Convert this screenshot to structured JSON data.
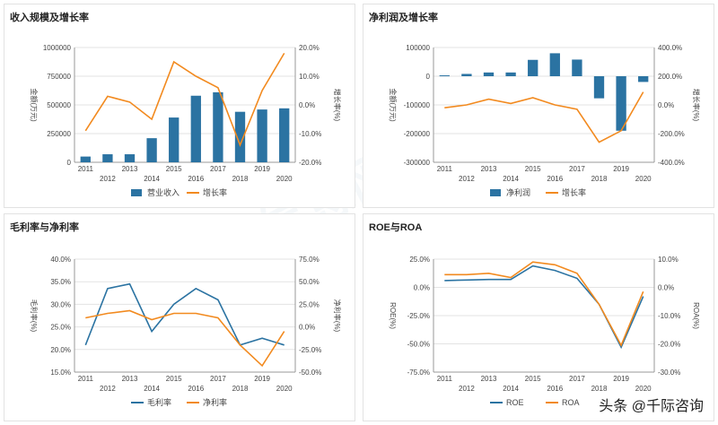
{
  "watermark_text": "资产信息网 千际投行",
  "brand_text": "头条 @千际咨询",
  "colors": {
    "bar": "#2b73a2",
    "line": "#f28a1f",
    "grid": "#e3e3e3",
    "axis": "#999999",
    "text": "#444444"
  },
  "chart_data": [
    {
      "id": "revenue",
      "type": "bar+line",
      "title": "收入规模及增长率",
      "categories": [
        "2011",
        "2012",
        "2013",
        "2014",
        "2015",
        "2016",
        "2017",
        "2018",
        "2019",
        "2020"
      ],
      "series": [
        {
          "name": "营业收入",
          "kind": "bar",
          "axis": "left",
          "values": [
            50000,
            70000,
            70000,
            210000,
            390000,
            580000,
            610000,
            440000,
            460000,
            470000
          ]
        },
        {
          "name": "增长率",
          "kind": "line",
          "axis": "right",
          "values": [
            -9.0,
            3.0,
            1.0,
            -5.0,
            15.0,
            10.0,
            6.0,
            -14.0,
            5.0,
            18.0
          ]
        }
      ],
      "ylabel": "金额(万元)",
      "y2label": "增长率(%)",
      "ylim": [
        0,
        1000000
      ],
      "yticks": [
        "0",
        "250000",
        "500000",
        "750000",
        "1000000"
      ],
      "y2lim": [
        -20,
        20
      ],
      "y2ticks": [
        "-20.0%",
        "-10.0%",
        "0.0%",
        "10.0%",
        "20.0%"
      ],
      "legend": [
        "营业收入",
        "增长率"
      ],
      "legend_position": "bottom"
    },
    {
      "id": "netprofit",
      "type": "bar+line",
      "title": "净利润及增长率",
      "categories": [
        "2011",
        "2012",
        "2013",
        "2014",
        "2015",
        "2016",
        "2017",
        "2018",
        "2019",
        "2020"
      ],
      "series": [
        {
          "name": "净利润",
          "kind": "bar",
          "axis": "left",
          "values": [
            3000,
            8000,
            13000,
            13000,
            57000,
            80000,
            58000,
            -77000,
            -190000,
            -20000
          ]
        },
        {
          "name": "增长率",
          "kind": "line",
          "axis": "right",
          "values": [
            -20,
            0,
            40,
            10,
            50,
            0,
            -30,
            -260,
            -180,
            90
          ]
        }
      ],
      "ylabel": "金额(万元)",
      "y2label": "增长率(%)",
      "ylim": [
        -300000,
        100000
      ],
      "yticks": [
        "-300000",
        "-200000",
        "-100000",
        "0",
        "100000"
      ],
      "y2lim": [
        -400,
        400
      ],
      "y2ticks": [
        "-400.0%",
        "-200.0%",
        "0.0%",
        "200.0%",
        "400.0%"
      ],
      "legend": [
        "净利润",
        "增长率"
      ],
      "legend_position": "bottom"
    },
    {
      "id": "margins",
      "type": "line",
      "title": "毛利率与净利率",
      "categories": [
        "2011",
        "2012",
        "2013",
        "2014",
        "2015",
        "2016",
        "2017",
        "2018",
        "2019",
        "2020"
      ],
      "series": [
        {
          "name": "毛利率",
          "kind": "line",
          "axis": "left",
          "values": [
            21.0,
            33.5,
            34.5,
            24.0,
            30.0,
            33.5,
            31.0,
            21.0,
            22.5,
            21.0
          ]
        },
        {
          "name": "净利率",
          "kind": "line",
          "axis": "right",
          "values": [
            10.0,
            15.0,
            18.0,
            8.0,
            15.0,
            15.0,
            10.0,
            -20.0,
            -43.0,
            -5.0
          ]
        }
      ],
      "ylabel": "毛利率(%)",
      "y2label": "净利率(%)",
      "ylim": [
        15,
        40
      ],
      "yticks": [
        "15.0%",
        "20.0%",
        "25.0%",
        "30.0%",
        "35.0%",
        "40.0%"
      ],
      "y2lim": [
        -50,
        75
      ],
      "y2ticks": [
        "-50.0%",
        "-25.0%",
        "0.0%",
        "25.0%",
        "50.0%",
        "75.0%"
      ],
      "legend": [
        "毛利率",
        "净利率"
      ],
      "legend_position": "bottom"
    },
    {
      "id": "roe",
      "type": "line",
      "title": "ROE与ROA",
      "categories": [
        "2011",
        "2012",
        "2013",
        "2014",
        "2015",
        "2016",
        "2017",
        "2018",
        "2019",
        "2020"
      ],
      "series": [
        {
          "name": "ROE",
          "kind": "line",
          "axis": "left",
          "values": [
            6.0,
            6.5,
            7.0,
            7.0,
            19.0,
            15.0,
            8.0,
            -15.0,
            -53.0,
            -8.0
          ]
        },
        {
          "name": "ROA",
          "kind": "line",
          "axis": "right",
          "values": [
            4.5,
            4.5,
            5.0,
            3.5,
            9.0,
            8.0,
            5.0,
            -6.0,
            -20.5,
            -1.5
          ]
        }
      ],
      "ylabel": "ROE(%)",
      "y2label": "ROA(%)",
      "ylim": [
        -75,
        25
      ],
      "yticks": [
        "-75.0%",
        "-50.0%",
        "-25.0%",
        "0.0%",
        "25.0%"
      ],
      "y2lim": [
        -30,
        10
      ],
      "y2ticks": [
        "-30.0%",
        "-20.0%",
        "-10.0%",
        "0.0%",
        "10.0%"
      ],
      "legend": [
        "ROE",
        "ROA"
      ],
      "legend_position": "bottom"
    }
  ]
}
